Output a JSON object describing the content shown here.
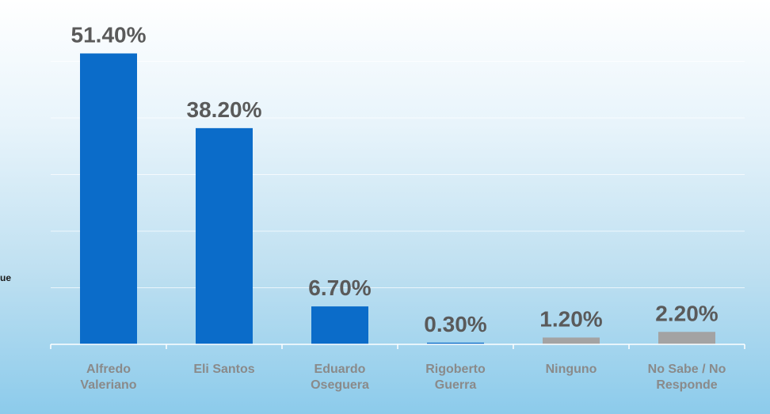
{
  "side_text": "ue",
  "chart_data": {
    "type": "bar",
    "title": "",
    "xlabel": "",
    "ylabel": "",
    "ylim": [
      0,
      60
    ],
    "grid": true,
    "categories": [
      [
        "Alfredo",
        "Valeriano"
      ],
      [
        "Eli Santos"
      ],
      [
        "Eduardo",
        "Oseguera"
      ],
      [
        "Rigoberto",
        "Guerra"
      ],
      [
        "Ninguno"
      ],
      [
        "No Sabe / No",
        "Responde"
      ]
    ],
    "values": [
      51.4,
      38.2,
      6.7,
      0.3,
      1.2,
      2.2
    ],
    "value_labels": [
      "51.40%",
      "38.20%",
      "6.70%",
      "0.30%",
      "1.20%",
      "2.20%"
    ],
    "bar_colors": [
      "#0b6cc9",
      "#0b6cc9",
      "#0b6cc9",
      "#0b6cc9",
      "#a3a3a3",
      "#a3a3a3"
    ],
    "colors": {
      "value_label": "#5a5a5a",
      "category_label": "#8a8a8a",
      "gridline": "#ffffff",
      "axis": "#ffffff"
    }
  }
}
